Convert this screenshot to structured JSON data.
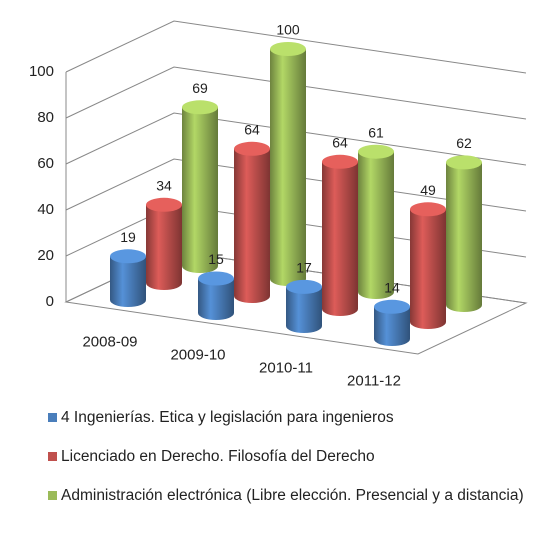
{
  "chart_data": {
    "type": "bar3d",
    "categories": [
      "2008-09",
      "2009-10",
      "2010-11",
      "2011-12"
    ],
    "series": [
      {
        "name": "4 Ingenierías. Etica y legislación para ingenieros",
        "color": "#4a7ebb",
        "values": [
          19,
          15,
          17,
          14
        ]
      },
      {
        "name": "Licenciado en Derecho. Filosofía del Derecho",
        "color": "#c0504d",
        "values": [
          34,
          64,
          64,
          49
        ]
      },
      {
        "name": "Administración electrónica (Libre elección. Presencial y a distancia)",
        "color": "#9bbb59",
        "values": [
          69,
          100,
          61,
          62
        ]
      }
    ],
    "ylim": [
      0,
      100
    ],
    "yticks": [
      0,
      20,
      40,
      60,
      80,
      100
    ],
    "grid": true
  }
}
